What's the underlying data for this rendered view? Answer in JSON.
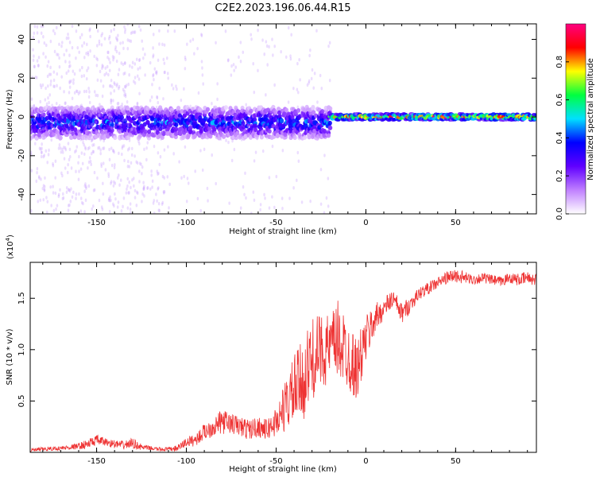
{
  "figure_title": "C2E2.2023.196.06.44.R15",
  "chart_data": [
    {
      "type": "heatmap",
      "title": "",
      "xlabel": "Height of straight line (km)",
      "ylabel": "Frequency (Hz)",
      "xlim": [
        -187,
        95
      ],
      "ylim": [
        -50,
        48
      ],
      "x_ticks": [
        "-150",
        "-100",
        "-50",
        "0",
        "50"
      ],
      "x_tick_values": [
        -150,
        -100,
        -50,
        0,
        50
      ],
      "y_ticks": [
        "-40",
        "-20",
        "0",
        "20",
        "40"
      ],
      "y_tick_values": [
        -40,
        -20,
        0,
        20,
        40
      ],
      "colorbar": {
        "label": "Normalized spectral amplitude",
        "range": [
          0,
          1
        ],
        "ticks": [
          "0.0",
          "0.2",
          "0.4",
          "0.6",
          "0.8"
        ],
        "tick_values": [
          0.0,
          0.2,
          0.4,
          0.6,
          0.8
        ],
        "colors": [
          "#ffffff",
          "#c080ff",
          "#6000ff",
          "#0000ff",
          "#00e0ff",
          "#00ff40",
          "#ffff00",
          "#ff0000",
          "#ff0080"
        ]
      },
      "grid": false,
      "regions": [
        {
          "x_range": [
            -187,
            -20
          ],
          "center_freq": -3,
          "spread_hz": 8,
          "peak_amplitude": 0.45
        },
        {
          "x_range": [
            -20,
            95
          ],
          "center_freq": 0,
          "spread_hz": 2,
          "peak_amplitude": 0.9
        }
      ]
    },
    {
      "type": "line",
      "title": "",
      "xlabel": "Height of straight line (km)",
      "ylabel": "SNR (10 * v/v)",
      "scale_label": "(x10",
      "scale_exponent": "4",
      "scale_suffix": ")",
      "xlim": [
        -187,
        95
      ],
      "ylim": [
        0,
        1.85
      ],
      "x_ticks": [
        "-150",
        "-100",
        "-50",
        "0",
        "50"
      ],
      "x_tick_values": [
        -150,
        -100,
        -50,
        0,
        50
      ],
      "y_ticks": [
        "0.5",
        "1.0",
        "1.5"
      ],
      "y_tick_values": [
        0.5,
        1.0,
        1.5
      ],
      "color": "#ee3333",
      "grid": false,
      "x": [
        -187,
        -180,
        -170,
        -160,
        -155,
        -150,
        -145,
        -140,
        -135,
        -130,
        -125,
        -120,
        -115,
        -110,
        -105,
        -100,
        -95,
        -90,
        -85,
        -80,
        -75,
        -70,
        -65,
        -60,
        -55,
        -50,
        -45,
        -40,
        -35,
        -30,
        -25,
        -20,
        -15,
        -10,
        -5,
        0,
        5,
        10,
        15,
        20,
        25,
        30,
        35,
        40,
        45,
        50,
        55,
        60,
        65,
        70,
        75,
        80,
        85,
        90,
        95
      ],
      "values": [
        0.02,
        0.03,
        0.04,
        0.06,
        0.08,
        0.12,
        0.1,
        0.08,
        0.07,
        0.09,
        0.05,
        0.04,
        0.03,
        0.03,
        0.04,
        0.1,
        0.12,
        0.2,
        0.25,
        0.3,
        0.28,
        0.25,
        0.22,
        0.25,
        0.22,
        0.3,
        0.45,
        0.6,
        0.7,
        0.9,
        1.0,
        1.0,
        1.1,
        0.95,
        0.8,
        1.1,
        1.3,
        1.4,
        1.5,
        1.35,
        1.45,
        1.55,
        1.6,
        1.65,
        1.7,
        1.72,
        1.7,
        1.68,
        1.7,
        1.68,
        1.66,
        1.7,
        1.68,
        1.7,
        1.68
      ],
      "noise": [
        0.02,
        0.02,
        0.02,
        0.03,
        0.05,
        0.05,
        0.04,
        0.04,
        0.04,
        0.05,
        0.03,
        0.02,
        0.02,
        0.02,
        0.03,
        0.05,
        0.06,
        0.08,
        0.1,
        0.12,
        0.1,
        0.1,
        0.1,
        0.1,
        0.1,
        0.15,
        0.25,
        0.35,
        0.4,
        0.4,
        0.35,
        0.35,
        0.4,
        0.35,
        0.3,
        0.25,
        0.15,
        0.1,
        0.1,
        0.1,
        0.08,
        0.06,
        0.06,
        0.06,
        0.06,
        0.07,
        0.06,
        0.05,
        0.05,
        0.05,
        0.05,
        0.05,
        0.06,
        0.06,
        0.06
      ]
    }
  ]
}
